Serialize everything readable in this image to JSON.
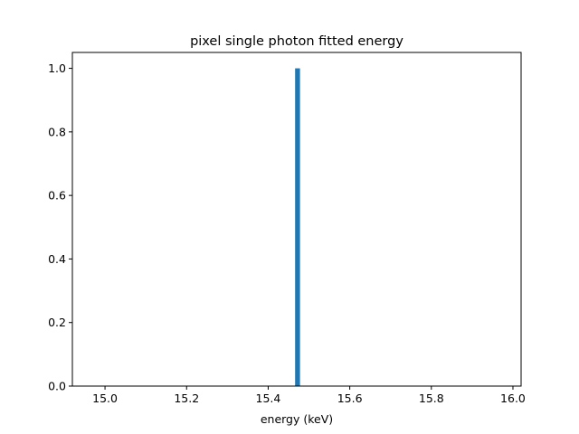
{
  "chart_data": {
    "type": "bar",
    "title": "pixel single photon fitted energy",
    "xlabel": "energy (keV)",
    "ylabel": "",
    "xlim": [
      14.92,
      16.02
    ],
    "ylim": [
      0,
      1.05
    ],
    "xticks": [
      "15.0",
      "15.2",
      "15.4",
      "15.6",
      "15.8",
      "16.0"
    ],
    "yticks": [
      "0.0",
      "0.2",
      "0.4",
      "0.6",
      "0.8",
      "1.0"
    ],
    "bins": [
      {
        "x0": 15.466,
        "x1": 15.478,
        "value": 1
      }
    ],
    "bar_color": "#1f77b4",
    "grid": false,
    "legend": "none"
  }
}
